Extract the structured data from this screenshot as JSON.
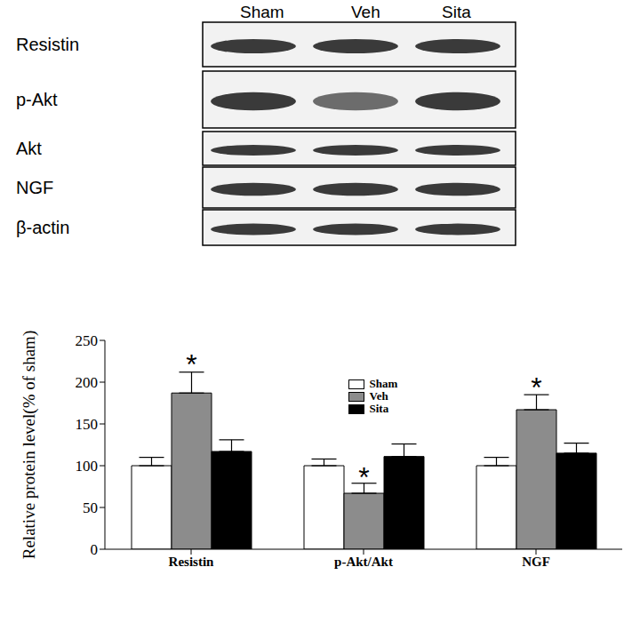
{
  "blot": {
    "columns": [
      "Sham",
      "Veh",
      "Sita"
    ],
    "rows": [
      "Resistin",
      "p-Akt",
      "Akt",
      "NGF",
      "β-actin"
    ]
  },
  "chart_data": {
    "type": "bar",
    "categories": [
      "Resistin",
      "p-Akt/Akt",
      "NGF"
    ],
    "series": [
      {
        "name": "Sham",
        "color": "#ffffff",
        "values": [
          100,
          100,
          100
        ],
        "errors": [
          10,
          8,
          10
        ]
      },
      {
        "name": "Veh",
        "color": "#8c8c8c",
        "values": [
          187,
          67,
          167
        ],
        "errors": [
          25,
          12,
          18
        ]
      },
      {
        "name": "Sita",
        "color": "#000000",
        "values": [
          117,
          111,
          115
        ],
        "errors": [
          14,
          15,
          12
        ]
      }
    ],
    "y_label": "Relative protein level(% of sham)",
    "ylim": [
      0,
      250
    ],
    "yticks": [
      0,
      50,
      100,
      150,
      200,
      250
    ],
    "legend": "upper center",
    "grid": false,
    "annotations": [
      {
        "text": "*",
        "series": "Veh",
        "category": "Resistin"
      },
      {
        "text": "*",
        "series": "Veh",
        "category": "p-Akt/Akt"
      },
      {
        "text": "*",
        "series": "Veh",
        "category": "NGF"
      }
    ]
  }
}
